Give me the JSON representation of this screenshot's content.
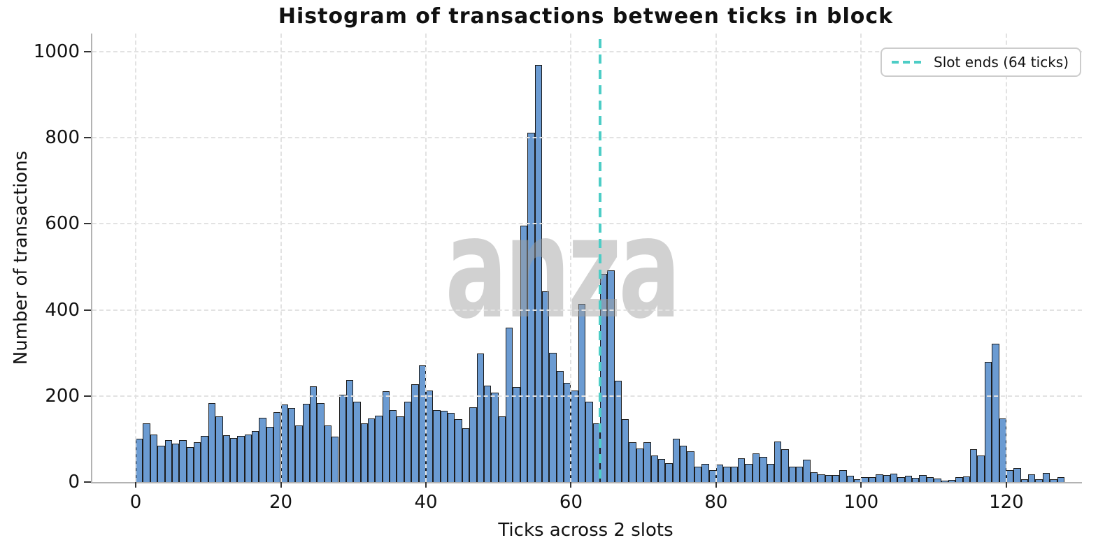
{
  "title": "Histogram of transactions between ticks in block",
  "legend": {
    "label": "Slot ends (64 ticks)"
  },
  "watermark": "anza",
  "colors": {
    "bar_fill": "#6b9bd2",
    "bar_edge": "#1c1c1c",
    "slot_line": "#4dcdc6",
    "grid": "#e2e2e2",
    "spine": "#b3b3b3"
  },
  "chart_data": {
    "type": "bar",
    "title": "Histogram of transactions between ticks in block",
    "xlabel": "Ticks across 2 slots",
    "ylabel": "Number of transactions",
    "bin_start": 0,
    "bin_width": 1,
    "values": [
      100,
      137,
      111,
      85,
      97,
      90,
      97,
      82,
      92,
      107,
      183,
      153,
      109,
      103,
      107,
      110,
      119,
      150,
      128,
      162,
      181,
      172,
      131,
      182,
      222,
      184,
      131,
      105,
      203,
      237,
      187,
      136,
      147,
      155,
      211,
      167,
      152,
      187,
      227,
      271,
      213,
      167,
      165,
      161,
      146,
      125,
      174,
      299,
      224,
      208,
      152,
      358,
      221,
      595,
      812,
      969,
      444,
      300,
      258,
      230,
      213,
      414,
      187,
      136,
      483,
      492,
      235,
      146,
      93,
      78,
      92,
      62,
      53,
      44,
      101,
      84,
      71,
      36,
      43,
      28,
      40,
      36,
      36,
      55,
      42,
      67,
      59,
      42,
      94,
      76,
      36,
      35,
      52,
      23,
      18,
      16,
      16,
      28,
      14,
      7,
      12,
      12,
      18,
      17,
      19,
      11,
      15,
      9,
      17,
      12,
      8,
      4,
      5,
      11,
      13,
      76,
      61,
      280,
      321,
      147,
      28,
      32,
      7,
      18,
      7,
      21,
      7,
      12
    ],
    "xticks": [
      0,
      20,
      40,
      60,
      80,
      100,
      120
    ],
    "yticks": [
      0,
      200,
      400,
      600,
      800,
      1000
    ],
    "xlim": [
      -5.98,
      130.42
    ],
    "ylim": [
      0,
      1042.2
    ],
    "grid": true,
    "legend_position": "upper right",
    "vline": {
      "x": 64,
      "label": "Slot ends (64 ticks)",
      "style": "dashed",
      "color": "#4dcdc6"
    },
    "bar_color": "#6b9bd2",
    "bar_edge_color": "#1c1c1c",
    "watermark": "anza"
  }
}
